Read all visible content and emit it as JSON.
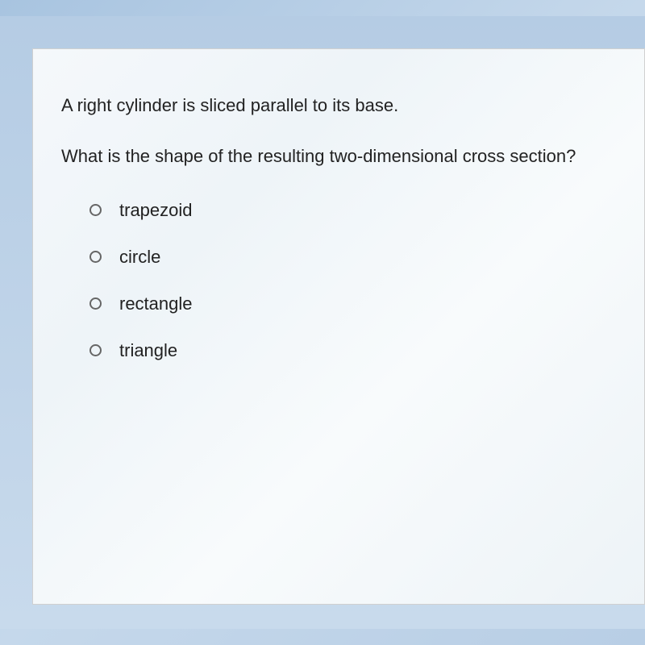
{
  "question": {
    "line1": "A right cylinder is sliced parallel to its base.",
    "line2": "What is the shape of the resulting two-dimensional cross section?"
  },
  "options": [
    {
      "label": "trapezoid",
      "selected": false
    },
    {
      "label": "circle",
      "selected": false
    },
    {
      "label": "rectangle",
      "selected": false
    },
    {
      "label": "triangle",
      "selected": false
    }
  ],
  "colors": {
    "frame_bg": "#b5cce4",
    "card_bg": "#f5f8fb",
    "text": "#222222",
    "radio_border": "#666666"
  }
}
